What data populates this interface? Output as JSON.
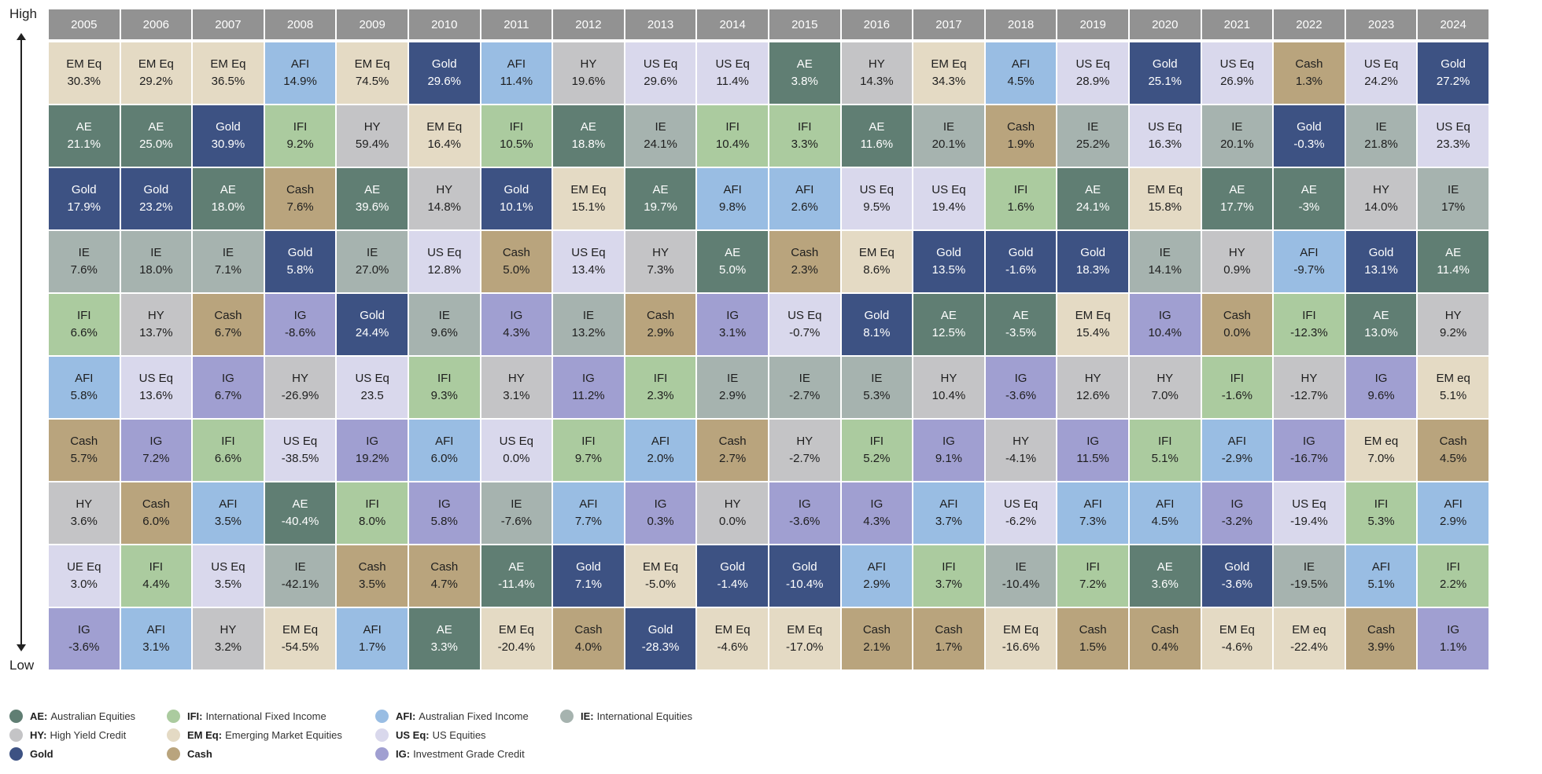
{
  "axis": {
    "high_label": "High",
    "low_label": "Low"
  },
  "asset_classes": {
    "AE": {
      "abbr": "AE",
      "name": "Australian Equities",
      "color": "#607e73",
      "dark": true
    },
    "HY": {
      "abbr": "HY",
      "name": "High Yield Credit",
      "color": "#c4c4c6",
      "dark": false
    },
    "Gold": {
      "abbr": "",
      "name": "Gold",
      "color": "#3d5283",
      "dark": true
    },
    "IFI": {
      "abbr": "IFI",
      "name": "International Fixed Income",
      "color": "#abcb9f",
      "dark": false
    },
    "EMEq": {
      "abbr": "EM Eq",
      "name": "Emerging Market Equities",
      "color": "#e4dac4",
      "dark": false
    },
    "Cash": {
      "abbr": "",
      "name": "Cash",
      "color": "#b9a47d",
      "dark": false
    },
    "AFI": {
      "abbr": "AFI",
      "name": "Australian Fixed Income",
      "color": "#99bde3",
      "dark": false
    },
    "USEq": {
      "abbr": "US Eq",
      "name": "US Equities",
      "color": "#d9d8ec",
      "dark": false
    },
    "IG": {
      "abbr": "IG",
      "name": "Investment Grade Credit",
      "color": "#a09fd1",
      "dark": false
    },
    "IE": {
      "abbr": "IE",
      "name": "International Equities",
      "color": "#a6b3af",
      "dark": false
    }
  },
  "legend": {
    "items": [
      {
        "key": "AE",
        "abbr": "AE:",
        "name": "Australian Equities"
      },
      {
        "key": "HY",
        "abbr": "HY:",
        "name": "High Yield Credit"
      },
      {
        "key": "Gold",
        "abbr": "Gold",
        "name": ""
      },
      {
        "key": "IFI",
        "abbr": "IFI:",
        "name": "International Fixed Income"
      },
      {
        "key": "EMEq",
        "abbr": "EM Eq:",
        "name": "Emerging Market Equities"
      },
      {
        "key": "Cash",
        "abbr": "Cash",
        "name": ""
      },
      {
        "key": "AFI",
        "abbr": "AFI:",
        "name": "Australian Fixed Income"
      },
      {
        "key": "USEq",
        "abbr": "US Eq:",
        "name": "US Equities"
      },
      {
        "key": "IG",
        "abbr": "IG:",
        "name": "Investment Grade Credit"
      },
      {
        "key": "IE",
        "abbr": "IE:",
        "name": "International Equities"
      }
    ]
  },
  "chart_data": {
    "type": "table",
    "years": [
      "2005",
      "2006",
      "2007",
      "2008",
      "2009",
      "2010",
      "2011",
      "2012",
      "2013",
      "2014",
      "2015",
      "2016",
      "2017",
      "2018",
      "2019",
      "2020",
      "2021",
      "2022",
      "2023",
      "2024"
    ],
    "columns": [
      [
        [
          "EMEq",
          "EM Eq",
          "30.3%"
        ],
        [
          "AE",
          "AE",
          "21.1%"
        ],
        [
          "Gold",
          "Gold",
          "17.9%"
        ],
        [
          "IE",
          "IE",
          "7.6%"
        ],
        [
          "IFI",
          "IFI",
          "6.6%"
        ],
        [
          "AFI",
          "AFI",
          "5.8%"
        ],
        [
          "Cash",
          "Cash",
          "5.7%"
        ],
        [
          "HY",
          "HY",
          "3.6%"
        ],
        [
          "USEq",
          "UE Eq",
          "3.0%"
        ],
        [
          "IG",
          "IG",
          "-3.6%"
        ]
      ],
      [
        [
          "EMEq",
          "EM Eq",
          "29.2%"
        ],
        [
          "AE",
          "AE",
          "25.0%"
        ],
        [
          "Gold",
          "Gold",
          "23.2%"
        ],
        [
          "IE",
          "IE",
          "18.0%"
        ],
        [
          "HY",
          "HY",
          "13.7%"
        ],
        [
          "USEq",
          "US Eq",
          "13.6%"
        ],
        [
          "IG",
          "IG",
          "7.2%"
        ],
        [
          "Cash",
          "Cash",
          "6.0%"
        ],
        [
          "IFI",
          "IFI",
          "4.4%"
        ],
        [
          "AFI",
          "AFI",
          "3.1%"
        ]
      ],
      [
        [
          "EMEq",
          "EM Eq",
          "36.5%"
        ],
        [
          "Gold",
          "Gold",
          "30.9%"
        ],
        [
          "AE",
          "AE",
          "18.0%"
        ],
        [
          "IE",
          "IE",
          "7.1%"
        ],
        [
          "Cash",
          "Cash",
          "6.7%"
        ],
        [
          "IG",
          "IG",
          "6.7%"
        ],
        [
          "IFI",
          "IFI",
          "6.6%"
        ],
        [
          "AFI",
          "AFI",
          "3.5%"
        ],
        [
          "USEq",
          "US Eq",
          "3.5%"
        ],
        [
          "HY",
          "HY",
          "3.2%"
        ]
      ],
      [
        [
          "AFI",
          "AFI",
          "14.9%"
        ],
        [
          "IFI",
          "IFI",
          "9.2%"
        ],
        [
          "Cash",
          "Cash",
          "7.6%"
        ],
        [
          "Gold",
          "Gold",
          "5.8%"
        ],
        [
          "IG",
          "IG",
          "-8.6%"
        ],
        [
          "HY",
          "HY",
          "-26.9%"
        ],
        [
          "USEq",
          "US Eq",
          "-38.5%"
        ],
        [
          "AE",
          "AE",
          "-40.4%"
        ],
        [
          "IE",
          "IE",
          "-42.1%"
        ],
        [
          "EMEq",
          "EM Eq",
          "-54.5%"
        ]
      ],
      [
        [
          "EMEq",
          "EM Eq",
          "74.5%"
        ],
        [
          "HY",
          "HY",
          "59.4%"
        ],
        [
          "AE",
          "AE",
          "39.6%"
        ],
        [
          "IE",
          "IE",
          "27.0%"
        ],
        [
          "Gold",
          "Gold",
          "24.4%"
        ],
        [
          "USEq",
          "US Eq",
          "23.5"
        ],
        [
          "IG",
          "IG",
          "19.2%"
        ],
        [
          "IFI",
          "IFI",
          "8.0%"
        ],
        [
          "Cash",
          "Cash",
          "3.5%"
        ],
        [
          "AFI",
          "AFI",
          "1.7%"
        ]
      ],
      [
        [
          "Gold",
          "Gold",
          "29.6%"
        ],
        [
          "EMEq",
          "EM Eq",
          "16.4%"
        ],
        [
          "HY",
          "HY",
          "14.8%"
        ],
        [
          "USEq",
          "US Eq",
          "12.8%"
        ],
        [
          "IE",
          "IE",
          "9.6%"
        ],
        [
          "IFI",
          "IFI",
          "9.3%"
        ],
        [
          "AFI",
          "AFI",
          "6.0%"
        ],
        [
          "IG",
          "IG",
          "5.8%"
        ],
        [
          "Cash",
          "Cash",
          "4.7%"
        ],
        [
          "AE",
          "AE",
          "3.3%"
        ]
      ],
      [
        [
          "AFI",
          "AFI",
          "11.4%"
        ],
        [
          "IFI",
          "IFI",
          "10.5%"
        ],
        [
          "Gold",
          "Gold",
          "10.1%"
        ],
        [
          "Cash",
          "Cash",
          "5.0%"
        ],
        [
          "IG",
          "IG",
          "4.3%"
        ],
        [
          "HY",
          "HY",
          "3.1%"
        ],
        [
          "USEq",
          "US Eq",
          "0.0%"
        ],
        [
          "IE",
          "IE",
          "-7.6%"
        ],
        [
          "AE",
          "AE",
          "-11.4%"
        ],
        [
          "EMEq",
          "EM Eq",
          "-20.4%"
        ]
      ],
      [
        [
          "HY",
          "HY",
          "19.6%"
        ],
        [
          "AE",
          "AE",
          "18.8%"
        ],
        [
          "EMEq",
          "EM Eq",
          "15.1%"
        ],
        [
          "USEq",
          "US Eq",
          "13.4%"
        ],
        [
          "IE",
          "IE",
          "13.2%"
        ],
        [
          "IG",
          "IG",
          "11.2%"
        ],
        [
          "IFI",
          "IFI",
          "9.7%"
        ],
        [
          "AFI",
          "AFI",
          "7.7%"
        ],
        [
          "Gold",
          "Gold",
          "7.1%"
        ],
        [
          "Cash",
          "Cash",
          "4.0%"
        ]
      ],
      [
        [
          "USEq",
          "US Eq",
          "29.6%"
        ],
        [
          "IE",
          "IE",
          "24.1%"
        ],
        [
          "AE",
          "AE",
          "19.7%"
        ],
        [
          "HY",
          "HY",
          "7.3%"
        ],
        [
          "Cash",
          "Cash",
          "2.9%"
        ],
        [
          "IFI",
          "IFI",
          "2.3%"
        ],
        [
          "AFI",
          "AFI",
          "2.0%"
        ],
        [
          "IG",
          "IG",
          "0.3%"
        ],
        [
          "EMEq",
          "EM Eq",
          "-5.0%"
        ],
        [
          "Gold",
          "Gold",
          "-28.3%"
        ]
      ],
      [
        [
          "USEq",
          "US Eq",
          "11.4%"
        ],
        [
          "IFI",
          "IFI",
          "10.4%"
        ],
        [
          "AFI",
          "AFI",
          "9.8%"
        ],
        [
          "AE",
          "AE",
          "5.0%"
        ],
        [
          "IG",
          "IG",
          "3.1%"
        ],
        [
          "IE",
          "IE",
          "2.9%"
        ],
        [
          "Cash",
          "Cash",
          "2.7%"
        ],
        [
          "HY",
          "HY",
          "0.0%"
        ],
        [
          "Gold",
          "Gold",
          "-1.4%"
        ],
        [
          "EMEq",
          "EM Eq",
          "-4.6%"
        ]
      ],
      [
        [
          "AE",
          "AE",
          "3.8%"
        ],
        [
          "IFI",
          "IFI",
          "3.3%"
        ],
        [
          "AFI",
          "AFI",
          "2.6%"
        ],
        [
          "Cash",
          "Cash",
          "2.3%"
        ],
        [
          "USEq",
          "US Eq",
          "-0.7%"
        ],
        [
          "IE",
          "IE",
          "-2.7%"
        ],
        [
          "HY",
          "HY",
          "-2.7%"
        ],
        [
          "IG",
          "IG",
          "-3.6%"
        ],
        [
          "Gold",
          "Gold",
          "-10.4%"
        ],
        [
          "EMEq",
          "EM Eq",
          "-17.0%"
        ]
      ],
      [
        [
          "HY",
          "HY",
          "14.3%"
        ],
        [
          "AE",
          "AE",
          "11.6%"
        ],
        [
          "USEq",
          "US Eq",
          "9.5%"
        ],
        [
          "EMEq",
          "EM Eq",
          "8.6%"
        ],
        [
          "Gold",
          "Gold",
          "8.1%"
        ],
        [
          "IE",
          "IE",
          "5.3%"
        ],
        [
          "IFI",
          "IFI",
          "5.2%"
        ],
        [
          "IG",
          "IG",
          "4.3%"
        ],
        [
          "AFI",
          "AFI",
          "2.9%"
        ],
        [
          "Cash",
          "Cash",
          "2.1%"
        ]
      ],
      [
        [
          "EMEq",
          "EM Eq",
          "34.3%"
        ],
        [
          "IE",
          "IE",
          "20.1%"
        ],
        [
          "USEq",
          "US Eq",
          "19.4%"
        ],
        [
          "Gold",
          "Gold",
          "13.5%"
        ],
        [
          "AE",
          "AE",
          "12.5%"
        ],
        [
          "HY",
          "HY",
          "10.4%"
        ],
        [
          "IG",
          "IG",
          "9.1%"
        ],
        [
          "AFI",
          "AFI",
          "3.7%"
        ],
        [
          "IFI",
          "IFI",
          "3.7%"
        ],
        [
          "Cash",
          "Cash",
          "1.7%"
        ]
      ],
      [
        [
          "AFI",
          "AFI",
          "4.5%"
        ],
        [
          "Cash",
          "Cash",
          "1.9%"
        ],
        [
          "IFI",
          "IFI",
          "1.6%"
        ],
        [
          "Gold",
          "Gold",
          "-1.6%"
        ],
        [
          "AE",
          "AE",
          "-3.5%"
        ],
        [
          "IG",
          "IG",
          "-3.6%"
        ],
        [
          "HY",
          "HY",
          "-4.1%"
        ],
        [
          "USEq",
          "US Eq",
          "-6.2%"
        ],
        [
          "IE",
          "IE",
          "-10.4%"
        ],
        [
          "EMEq",
          "EM Eq",
          "-16.6%"
        ]
      ],
      [
        [
          "USEq",
          "US Eq",
          "28.9%"
        ],
        [
          "IE",
          "IE",
          "25.2%"
        ],
        [
          "AE",
          "AE",
          "24.1%"
        ],
        [
          "Gold",
          "Gold",
          "18.3%"
        ],
        [
          "EMEq",
          "EM Eq",
          "15.4%"
        ],
        [
          "HY",
          "HY",
          "12.6%"
        ],
        [
          "IG",
          "IG",
          "11.5%"
        ],
        [
          "AFI",
          "AFI",
          "7.3%"
        ],
        [
          "IFI",
          "IFI",
          "7.2%"
        ],
        [
          "Cash",
          "Cash",
          "1.5%"
        ]
      ],
      [
        [
          "Gold",
          "Gold",
          "25.1%"
        ],
        [
          "USEq",
          "US Eq",
          "16.3%"
        ],
        [
          "EMEq",
          "EM Eq",
          "15.8%"
        ],
        [
          "IE",
          "IE",
          "14.1%"
        ],
        [
          "IG",
          "IG",
          "10.4%"
        ],
        [
          "HY",
          "HY",
          "7.0%"
        ],
        [
          "IFI",
          "IFI",
          "5.1%"
        ],
        [
          "AFI",
          "AFI",
          "4.5%"
        ],
        [
          "AE",
          "AE",
          "3.6%"
        ],
        [
          "Cash",
          "Cash",
          "0.4%"
        ]
      ],
      [
        [
          "USEq",
          "US Eq",
          "26.9%"
        ],
        [
          "IE",
          "IE",
          "20.1%"
        ],
        [
          "AE",
          "AE",
          "17.7%"
        ],
        [
          "HY",
          "HY",
          "0.9%"
        ],
        [
          "Cash",
          "Cash",
          "0.0%"
        ],
        [
          "IFI",
          "IFI",
          "-1.6%"
        ],
        [
          "AFI",
          "AFI",
          "-2.9%"
        ],
        [
          "IG",
          "IG",
          "-3.2%"
        ],
        [
          "Gold",
          "Gold",
          "-3.6%"
        ],
        [
          "EMEq",
          "EM Eq",
          "-4.6%"
        ]
      ],
      [
        [
          "Cash",
          "Cash",
          "1.3%"
        ],
        [
          "Gold",
          "Gold",
          "-0.3%"
        ],
        [
          "AE",
          "AE",
          "-3%"
        ],
        [
          "AFI",
          "AFI",
          "-9.7%"
        ],
        [
          "IFI",
          "IFI",
          "-12.3%"
        ],
        [
          "HY",
          "HY",
          "-12.7%"
        ],
        [
          "IG",
          "IG",
          "-16.7%"
        ],
        [
          "USEq",
          "US Eq",
          "-19.4%"
        ],
        [
          "IE",
          "IE",
          "-19.5%"
        ],
        [
          "EMEq",
          "EM eq",
          "-22.4%"
        ]
      ],
      [
        [
          "USEq",
          "US Eq",
          "24.2%"
        ],
        [
          "IE",
          "IE",
          "21.8%"
        ],
        [
          "HY",
          "HY",
          "14.0%"
        ],
        [
          "Gold",
          "Gold",
          "13.1%"
        ],
        [
          "AE",
          "AE",
          "13.0%"
        ],
        [
          "IG",
          "IG",
          "9.6%"
        ],
        [
          "EMEq",
          "EM eq",
          "7.0%"
        ],
        [
          "IFI",
          "IFI",
          "5.3%"
        ],
        [
          "AFI",
          "AFI",
          "5.1%"
        ],
        [
          "Cash",
          "Cash",
          "3.9%"
        ]
      ],
      [
        [
          "Gold",
          "Gold",
          "27.2%"
        ],
        [
          "USEq",
          "US Eq",
          "23.3%"
        ],
        [
          "IE",
          "IE",
          "17%"
        ],
        [
          "AE",
          "AE",
          "11.4%"
        ],
        [
          "HY",
          "HY",
          "9.2%"
        ],
        [
          "EMEq",
          "EM eq",
          "5.1%"
        ],
        [
          "Cash",
          "Cash",
          "4.5%"
        ],
        [
          "AFI",
          "AFI",
          "2.9%"
        ],
        [
          "IFI",
          "IFI",
          "2.2%"
        ],
        [
          "IG",
          "IG",
          "1.1%"
        ]
      ]
    ]
  }
}
